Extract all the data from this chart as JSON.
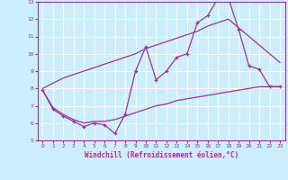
{
  "xlabel": "Windchill (Refroidissement éolien,°C)",
  "x": [
    0,
    1,
    2,
    3,
    4,
    5,
    6,
    7,
    8,
    9,
    10,
    11,
    12,
    13,
    14,
    15,
    16,
    17,
    18,
    19,
    20,
    21,
    22,
    23
  ],
  "y_main": [
    7.9,
    6.8,
    6.4,
    6.1,
    5.8,
    6.0,
    5.9,
    5.4,
    6.5,
    9.0,
    10.4,
    8.5,
    9.0,
    9.8,
    10.0,
    11.8,
    12.2,
    13.2,
    13.2,
    11.4,
    9.3,
    9.1,
    8.1,
    8.1
  ],
  "y_upper": [
    8.0,
    8.3,
    8.6,
    8.8,
    9.0,
    9.2,
    9.4,
    9.6,
    9.8,
    10.0,
    10.3,
    10.5,
    10.7,
    10.9,
    11.1,
    11.3,
    11.6,
    11.8,
    12.0,
    11.5,
    11.0,
    10.5,
    10.0,
    9.5
  ],
  "y_lower": [
    7.9,
    6.9,
    6.5,
    6.2,
    6.0,
    6.1,
    6.1,
    6.2,
    6.4,
    6.6,
    6.8,
    7.0,
    7.1,
    7.3,
    7.4,
    7.5,
    7.6,
    7.7,
    7.8,
    7.9,
    8.0,
    8.1,
    8.1,
    8.1
  ],
  "color": "#993399",
  "bg_color": "#cceeff",
  "grid_color": "#ffffff",
  "ylim": [
    5,
    13
  ],
  "yticks": [
    5,
    6,
    7,
    8,
    9,
    10,
    11,
    12,
    13
  ],
  "xlim": [
    -0.5,
    23.5
  ],
  "xticks": [
    0,
    1,
    2,
    3,
    4,
    5,
    6,
    7,
    8,
    9,
    10,
    11,
    12,
    13,
    14,
    15,
    16,
    17,
    18,
    19,
    20,
    21,
    22,
    23
  ]
}
